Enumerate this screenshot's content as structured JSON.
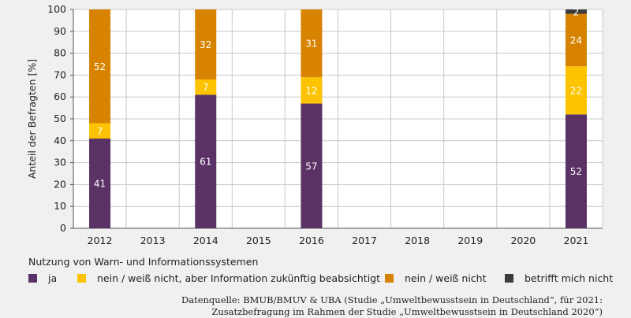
{
  "chart_data": {
    "type": "bar",
    "stacked": true,
    "categories": [
      "2012",
      "2013",
      "2014",
      "2015",
      "2016",
      "2017",
      "2018",
      "2019",
      "2020",
      "2021"
    ],
    "series": [
      {
        "name": "ja",
        "color": "#5b3266",
        "values": [
          41,
          null,
          61,
          null,
          57,
          null,
          null,
          null,
          null,
          52
        ]
      },
      {
        "name": "nein / weiß nicht, aber Information zukünftig beabsichtigt",
        "color": "#fdc300",
        "values": [
          7,
          null,
          7,
          null,
          12,
          null,
          null,
          null,
          null,
          22
        ]
      },
      {
        "name": "nein / weiß nicht",
        "color": "#d78300",
        "values": [
          52,
          null,
          32,
          null,
          31,
          null,
          null,
          null,
          null,
          24
        ]
      },
      {
        "name": "betrifft mich nicht",
        "color": "#3c3c3c",
        "values": [
          null,
          null,
          null,
          null,
          null,
          null,
          null,
          null,
          null,
          2
        ]
      }
    ],
    "ylabel": "Anteil der Befragten [%]",
    "ylim": [
      0,
      100
    ],
    "yticks": [
      0,
      10,
      20,
      30,
      40,
      50,
      60,
      70,
      80,
      90,
      100
    ],
    "grid": true,
    "legend_title": "Nutzung von Warn- und Informationssystemen",
    "legend_placement": "bottom"
  },
  "source_line1": "Datenquelle: BMUB/BMUV & UBA (Studie „Umweltbewusstsein in Deutschland“, für 2021:",
  "source_line2": "Zusatzbefragung im Rahmen der Studie „Umweltbewusstsein in Deutschland 2020“)"
}
